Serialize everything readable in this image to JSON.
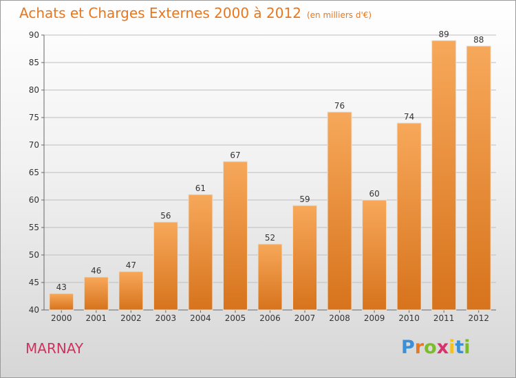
{
  "chart_data": {
    "type": "bar",
    "title": "Achats et Charges Externes 2000 à 2012",
    "subtitle": "(en milliers d'€)",
    "categories": [
      "2000",
      "2001",
      "2002",
      "2003",
      "2004",
      "2005",
      "2006",
      "2007",
      "2008",
      "2009",
      "2010",
      "2011",
      "2012"
    ],
    "values": [
      43,
      46,
      47,
      56,
      61,
      67,
      52,
      59,
      76,
      60,
      74,
      89,
      88
    ],
    "ylim": [
      40,
      90
    ],
    "yticks": [
      40,
      45,
      50,
      55,
      60,
      65,
      70,
      75,
      80,
      85,
      90
    ],
    "grid": true,
    "legend": "none",
    "colors": {
      "bar_top": "#f7a85a",
      "bar_bottom": "#d7731c",
      "title": "#e8761e"
    }
  },
  "footer": {
    "city": "MARNAY",
    "logo_letters": [
      "P",
      "r",
      "o",
      "x",
      "i",
      "t",
      "i"
    ],
    "logo_colors": [
      "#3a8fd6",
      "#e87722",
      "#7cbc2b",
      "#d6336c",
      "#f2c21a",
      "#3a8fd6",
      "#7cbc2b"
    ]
  }
}
